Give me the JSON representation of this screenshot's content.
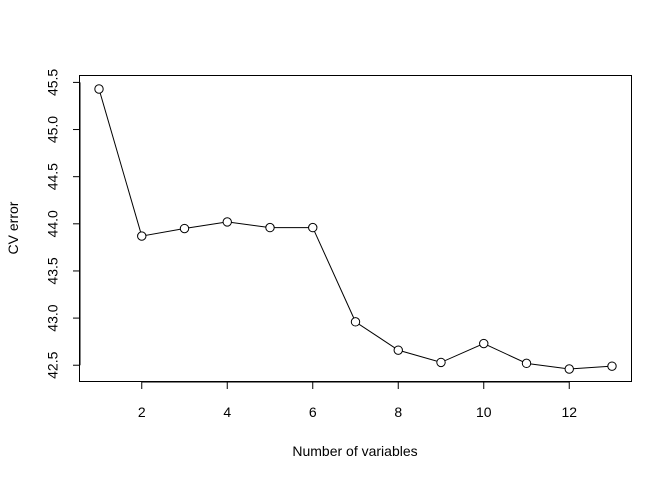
{
  "chart_data": {
    "type": "line",
    "title": "",
    "xlabel": "Number of variables",
    "ylabel": "CV error",
    "x": [
      1,
      2,
      3,
      4,
      5,
      6,
      7,
      8,
      9,
      10,
      11,
      12,
      13
    ],
    "series": [
      {
        "values": [
          45.43,
          43.87,
          43.95,
          44.02,
          43.96,
          43.96,
          42.96,
          42.66,
          42.53,
          42.73,
          42.52,
          42.46,
          42.49
        ]
      }
    ],
    "xlim": [
      1,
      13
    ],
    "ylim": [
      42.46,
      45.43
    ],
    "x_ticks": [
      2,
      4,
      6,
      8,
      10,
      12
    ],
    "y_ticks": [
      42.5,
      43.0,
      43.5,
      44.0,
      44.5,
      45.0,
      45.5
    ],
    "x_tick_labels": [
      "2",
      "4",
      "6",
      "8",
      "10",
      "12"
    ],
    "y_tick_labels": [
      "42.5",
      "43.0",
      "43.5",
      "44.0",
      "44.5",
      "45.0",
      "45.5"
    ],
    "marker": "open-circle",
    "line_color": "#000000",
    "marker_fill": "#ffffff",
    "marker_stroke": "#000000",
    "grid": false,
    "legend": "none"
  }
}
